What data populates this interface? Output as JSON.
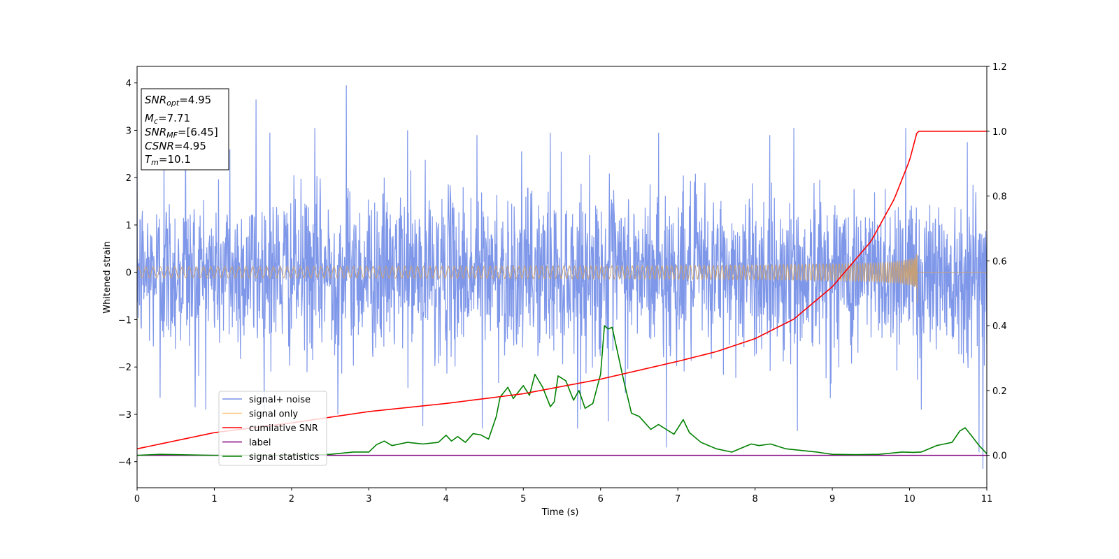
{
  "chart_data": {
    "type": "line",
    "xlabel": "Time (s)",
    "ylabel": "Whitened strain",
    "xlim": [
      0,
      11
    ],
    "ylim_left": [
      -4.55,
      4.35
    ],
    "ylim_right": [
      -0.1,
      1.2
    ],
    "x_ticks": [
      0,
      1,
      2,
      3,
      4,
      5,
      6,
      7,
      8,
      9,
      10,
      11
    ],
    "y_ticks_left": [
      4,
      3,
      2,
      1,
      0,
      -1,
      -2,
      -3,
      -4
    ],
    "y_ticks_left_labels": [
      "4",
      "3",
      "2",
      "1",
      "0",
      "−1",
      "−2",
      "−3",
      "−4"
    ],
    "y_ticks_right": [
      1.2,
      1.0,
      0.8,
      0.6,
      0.4,
      0.2,
      0.0
    ],
    "y_ticks_right_labels": [
      "1.2",
      "1.0",
      "0.8",
      "0.6",
      "0.4",
      "0.2",
      "0.0"
    ],
    "grid": false,
    "legend_position": "lower-left",
    "info_box": {
      "snr_opt": {
        "main": "SNR",
        "sub": "opt",
        "value": "=4.95"
      },
      "mc": {
        "main": "M",
        "sub": "c",
        "value": "=7.71"
      },
      "snr_mf": {
        "main": "SNR",
        "sub": "MF",
        "value": "=[6.45]"
      },
      "csnr": {
        "main": "CSNR",
        "value": "=4.95"
      },
      "tm": {
        "main": "T",
        "sub": "m",
        "value": "=10.1"
      }
    },
    "series": [
      {
        "name": "signal+ noise",
        "axis": "left",
        "color": "#7891e8",
        "description_amplitude": {
          "typical_max": 2.2,
          "typical_min": -2.2,
          "peak_max": 3.95,
          "peak_min": -4.15
        },
        "spikes": [
          {
            "x": 2.71,
            "y": 3.95
          },
          {
            "x": 1.54,
            "y": 3.65
          },
          {
            "x": 0.63,
            "y": 3.3
          },
          {
            "x": 0.35,
            "y": 2.65
          },
          {
            "x": 1.72,
            "y": 2.95
          },
          {
            "x": 2.3,
            "y": 3.05
          },
          {
            "x": 3.5,
            "y": 3.0
          },
          {
            "x": 4.4,
            "y": 2.9
          },
          {
            "x": 5.35,
            "y": 2.95
          },
          {
            "x": 6.75,
            "y": 2.95
          },
          {
            "x": 8.5,
            "y": 3.05
          },
          {
            "x": 9.95,
            "y": 3.05
          },
          {
            "x": 10.75,
            "y": 2.75
          },
          {
            "x": 1.2,
            "y": 2.6
          },
          {
            "x": 0.75,
            "y": -2.85
          },
          {
            "x": 3.7,
            "y": -3.25
          },
          {
            "x": 4.47,
            "y": -3.3
          },
          {
            "x": 5.7,
            "y": -3.3
          },
          {
            "x": 6.1,
            "y": -3.15
          },
          {
            "x": 6.85,
            "y": -3.7
          },
          {
            "x": 8.55,
            "y": -3.35
          },
          {
            "x": 10.15,
            "y": -2.9
          },
          {
            "x": 10.95,
            "y": -4.15
          },
          {
            "x": 10.9,
            "y": -3.8
          },
          {
            "x": 2.6,
            "y": -3.0
          },
          {
            "x": 0.3,
            "y": -2.65
          }
        ]
      },
      {
        "name": "signal only",
        "axis": "left",
        "color": "#ffb347",
        "chirp_start_x": 0,
        "chirp_end_x": 10.1,
        "chirp_peak_amplitude": 0.45,
        "chirp_min_amplitude": -0.65
      },
      {
        "name": "cumilative SNR",
        "axis": "right",
        "color": "#ff0000",
        "x": [
          0,
          1,
          2,
          3,
          4,
          5,
          6,
          7,
          7.5,
          8,
          8.5,
          9,
          9.5,
          9.8,
          10.0,
          10.1,
          11
        ],
        "y": [
          0.02,
          0.07,
          0.1,
          0.135,
          0.16,
          0.19,
          0.235,
          0.29,
          0.32,
          0.36,
          0.42,
          0.52,
          0.66,
          0.79,
          0.91,
          1.0,
          1.0
        ]
      },
      {
        "name": "label",
        "axis": "right",
        "color": "#800080",
        "x": [
          0,
          11
        ],
        "y": [
          0.0,
          0.0
        ]
      },
      {
        "name": "signal statistics",
        "axis": "right",
        "color": "#008000",
        "x": [
          0,
          0.3,
          1,
          2,
          2.5,
          2.8,
          3,
          3.1,
          3.2,
          3.3,
          3.5,
          3.7,
          3.9,
          4.0,
          4.07,
          4.15,
          4.25,
          4.35,
          4.45,
          4.55,
          4.65,
          4.7,
          4.8,
          4.87,
          4.95,
          5.0,
          5.08,
          5.15,
          5.25,
          5.35,
          5.4,
          5.45,
          5.55,
          5.65,
          5.72,
          5.8,
          5.9,
          6.0,
          6.05,
          6.1,
          6.15,
          6.2,
          6.3,
          6.4,
          6.5,
          6.65,
          6.75,
          6.85,
          6.95,
          7.07,
          7.15,
          7.3,
          7.5,
          7.7,
          7.85,
          7.95,
          8.05,
          8.2,
          8.4,
          8.6,
          8.8,
          9.0,
          9.3,
          9.6,
          9.9,
          10.05,
          10.15,
          10.35,
          10.45,
          10.55,
          10.65,
          10.72,
          10.82,
          10.9,
          11.0
        ],
        "y": [
          0.0,
          0.003,
          0.0,
          0.0,
          0.003,
          0.01,
          0.01,
          0.033,
          0.044,
          0.03,
          0.04,
          0.035,
          0.04,
          0.062,
          0.044,
          0.058,
          0.04,
          0.067,
          0.063,
          0.05,
          0.12,
          0.18,
          0.21,
          0.175,
          0.2,
          0.215,
          0.185,
          0.25,
          0.21,
          0.15,
          0.165,
          0.245,
          0.23,
          0.17,
          0.2,
          0.145,
          0.16,
          0.25,
          0.4,
          0.39,
          0.395,
          0.34,
          0.23,
          0.13,
          0.12,
          0.08,
          0.095,
          0.08,
          0.065,
          0.11,
          0.07,
          0.04,
          0.02,
          0.01,
          0.025,
          0.035,
          0.03,
          0.035,
          0.02,
          0.015,
          0.01,
          0.003,
          0.002,
          0.003,
          0.01,
          0.009,
          0.01,
          0.03,
          0.035,
          0.04,
          0.075,
          0.085,
          0.055,
          0.03,
          0.005
        ]
      }
    ]
  }
}
